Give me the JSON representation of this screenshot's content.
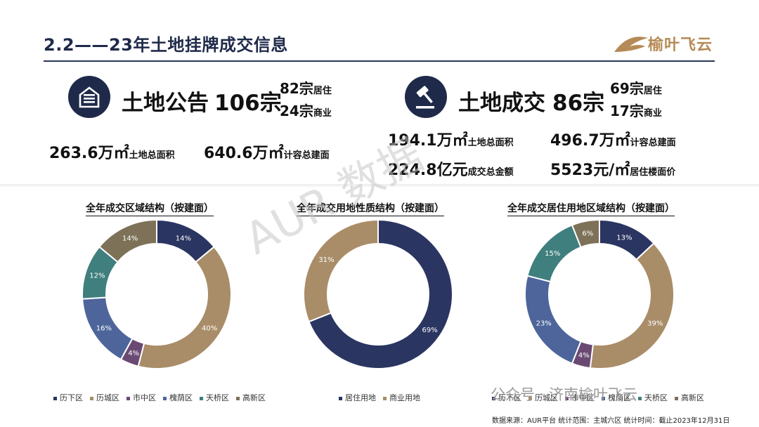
{
  "header": {
    "title": "2.2——23年土地挂牌成交信息",
    "logo_text": "榆叶飞云"
  },
  "announce": {
    "label": "土地公告",
    "count": "106宗",
    "res_num": "82宗",
    "res_label": "居住",
    "com_num": "24宗",
    "com_label": "商业",
    "area_value": "263.6万㎡",
    "area_label": "土地总面积",
    "build_value": "640.6万㎡",
    "build_label": "计容总建面"
  },
  "deal": {
    "label": "土地成交",
    "count": "86宗",
    "res_num": "69宗",
    "res_label": "居住",
    "com_num": "17宗",
    "com_label": "商业",
    "area_value": "194.1万㎡",
    "area_label": "土地总面积",
    "build_value": "496.7万㎡",
    "build_label": "计容总建面",
    "money_value": "224.8亿元",
    "money_label": "成交总金额",
    "price_value": "5523元/㎡",
    "price_label": "居住楼面价"
  },
  "colors": {
    "navy": "#2b3562",
    "tan": "#a98d68",
    "plum": "#6a4a73",
    "blue": "#4d659b",
    "teal": "#3f7f7d",
    "olive": "#7d7258"
  },
  "chart_data": [
    {
      "type": "pie",
      "title": "全年成交区域结构（按建面）",
      "categories": [
        "历下区",
        "历城区",
        "市中区",
        "槐荫区",
        "天桥区",
        "高新区"
      ],
      "values": [
        14,
        40,
        4,
        16,
        12,
        14
      ],
      "labels": [
        "14%",
        "40%",
        "4%",
        "16%",
        "12%",
        "14%"
      ],
      "colors": [
        "#2b3562",
        "#a98d68",
        "#6a4a73",
        "#4d659b",
        "#3f7f7d",
        "#7d7258"
      ],
      "legend": "bottom"
    },
    {
      "type": "pie",
      "title": "全年成交用地性质结构（按建面）",
      "categories": [
        "居住用地",
        "商业用地"
      ],
      "values": [
        69,
        31
      ],
      "labels": [
        "69%",
        "31%"
      ],
      "colors": [
        "#2b3562",
        "#a98d68"
      ],
      "legend": "bottom"
    },
    {
      "type": "pie",
      "title": "全年成交居住用地区域结构（按建面）",
      "categories": [
        "历下区",
        "历城区",
        "市中区",
        "槐荫区",
        "天桥区",
        "高新区"
      ],
      "values": [
        13,
        39,
        4,
        23,
        15,
        6
      ],
      "labels": [
        "13%",
        "39%",
        "4%",
        "23%",
        "15%",
        "6%"
      ],
      "colors": [
        "#2b3562",
        "#a98d68",
        "#6a4a73",
        "#4d659b",
        "#3f7f7d",
        "#7d7258"
      ],
      "legend": "bottom"
    }
  ],
  "watermark": "AUR 数据",
  "wechat": "公众号 · 济南榆叶飞云",
  "footer": "数据来源：AUR平台    统计范围：主城六区    统计时间：截止2023年12月31日"
}
